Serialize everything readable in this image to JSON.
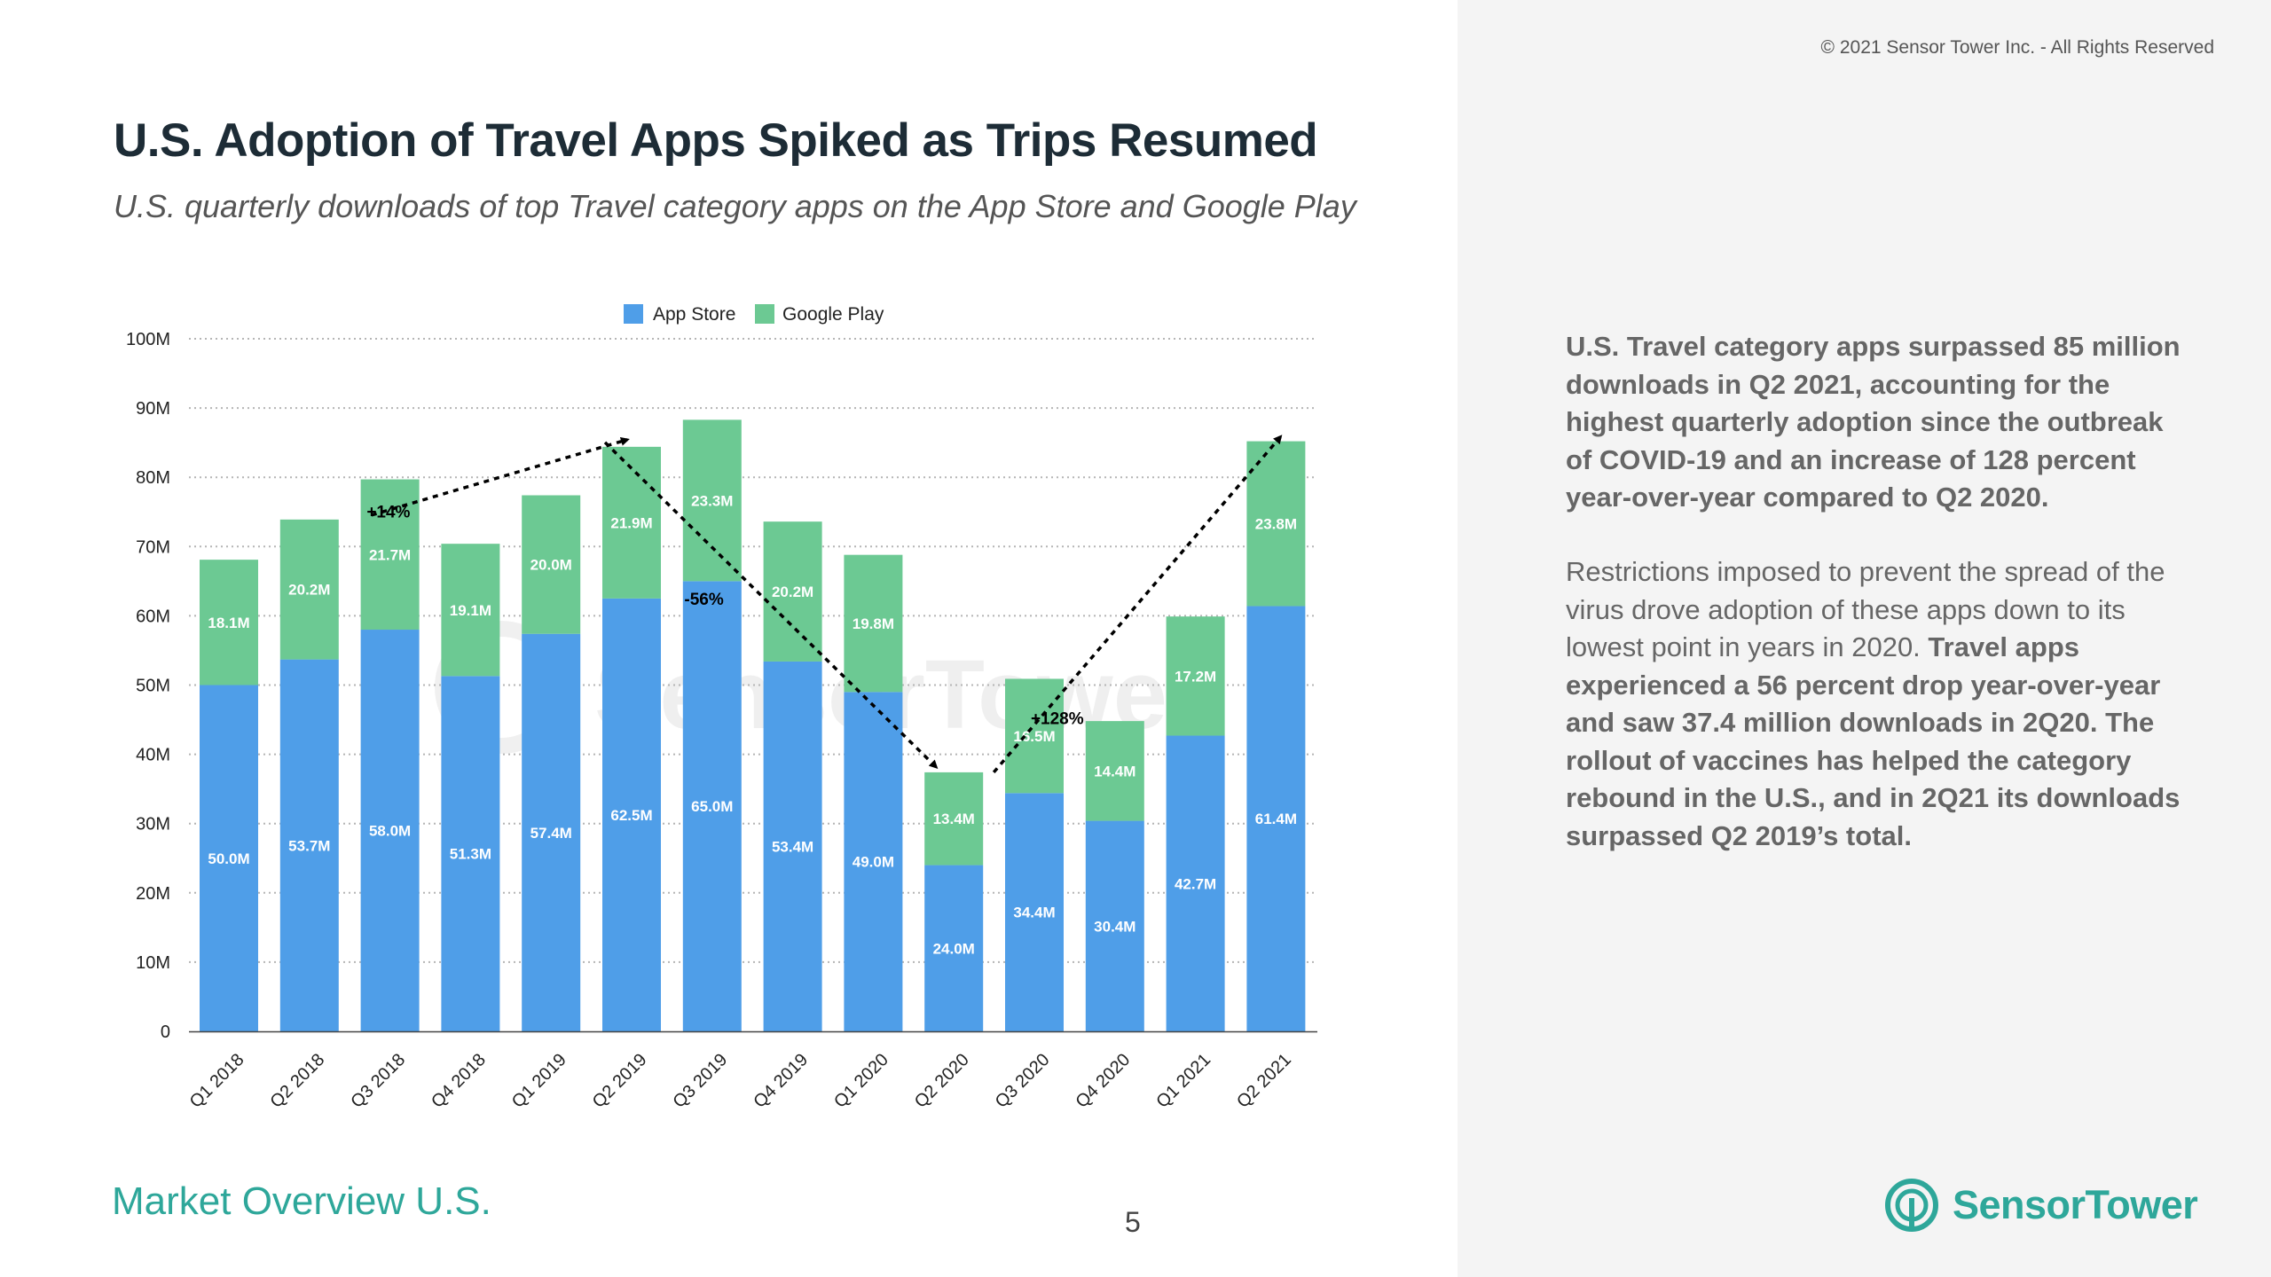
{
  "header": {
    "copyright": "© 2021 Sensor Tower Inc. - All Rights Reserved",
    "title": "U.S. Adoption of Travel Apps Spiked as Trips Resumed",
    "subtitle": "U.S. quarterly downloads of top Travel category apps on the App Store and Google Play"
  },
  "colors": {
    "app_store": "#4f9ee8",
    "google_play": "#6cc993",
    "accent": "#2ea79a",
    "panel_bg": "#f4f4f4"
  },
  "chart_data": {
    "type": "bar",
    "stacked": true,
    "title": "U.S. quarterly downloads of top Travel category apps on the App Store and Google Play",
    "xlabel": "",
    "ylabel": "",
    "ylim": [
      0,
      100
    ],
    "unit": "M",
    "y_ticks": [
      0,
      10,
      20,
      30,
      40,
      50,
      60,
      70,
      80,
      90,
      100
    ],
    "y_tick_labels": [
      "0",
      "10M",
      "20M",
      "30M",
      "40M",
      "50M",
      "60M",
      "70M",
      "80M",
      "90M",
      "100M"
    ],
    "grid": true,
    "legend_position": "top-center",
    "categories": [
      "Q1 2018",
      "Q2 2018",
      "Q3 2018",
      "Q4 2018",
      "Q1 2019",
      "Q2 2019",
      "Q3 2019",
      "Q4 2019",
      "Q1 2020",
      "Q2 2020",
      "Q3 2020",
      "Q4 2020",
      "Q1 2021",
      "Q2 2021"
    ],
    "series": [
      {
        "name": "App Store",
        "values": [
          50.0,
          53.7,
          58.0,
          51.3,
          57.4,
          62.5,
          65.0,
          53.4,
          49.0,
          24.0,
          34.4,
          30.4,
          42.7,
          61.4
        ],
        "labels": [
          "50.0M",
          "53.7M",
          "58.0M",
          "51.3M",
          "57.4M",
          "62.5M",
          "65.0M",
          "53.4M",
          "49.0M",
          "24.0M",
          "34.4M",
          "30.4M",
          "42.7M",
          "61.4M"
        ]
      },
      {
        "name": "Google Play",
        "values": [
          18.1,
          20.2,
          21.7,
          19.1,
          20.0,
          21.9,
          23.3,
          20.2,
          19.8,
          13.4,
          16.5,
          14.4,
          17.2,
          23.8
        ],
        "labels": [
          "18.1M",
          "20.2M",
          "21.7M",
          "19.1M",
          "20.0M",
          "21.9M",
          "23.3M",
          "20.2M",
          "19.8M",
          "13.4M",
          "16.5M",
          "14.4M",
          "17.2M",
          "23.8M"
        ]
      }
    ],
    "annotations": [
      {
        "text": "+14%",
        "from_category": "Q2 2018",
        "to_category": "Q2 2019"
      },
      {
        "text": "-56%",
        "from_category": "Q2 2019",
        "to_category": "Q2 2020"
      },
      {
        "text": "+128%",
        "from_category": "Q2 2020",
        "to_category": "Q2 2021"
      }
    ],
    "watermark": "SensorTower"
  },
  "body": {
    "para1": "U.S. Travel category apps surpassed 85 million downloads in Q2 2021, accounting for the highest quarterly adoption since the outbreak of COVID-19 and an increase of 128 percent year-over-year compared to Q2 2020.",
    "para2_a": "Restrictions imposed to prevent the spread of the virus drove adoption of these apps down to its lowest point in years in 2020. ",
    "para2_b": "Travel apps experienced a 56 percent drop year-over-year and saw 37.4 million downloads in 2Q20. The rollout of vaccines has helped the category rebound in the U.S., and in 2Q21 its downloads surpassed Q2 2019’s total."
  },
  "footer": {
    "section_title": "Market Overview U.S.",
    "page_number": "5",
    "brand_name": "SensorTower",
    "brand_icon": "sensor-tower-logo-icon"
  }
}
